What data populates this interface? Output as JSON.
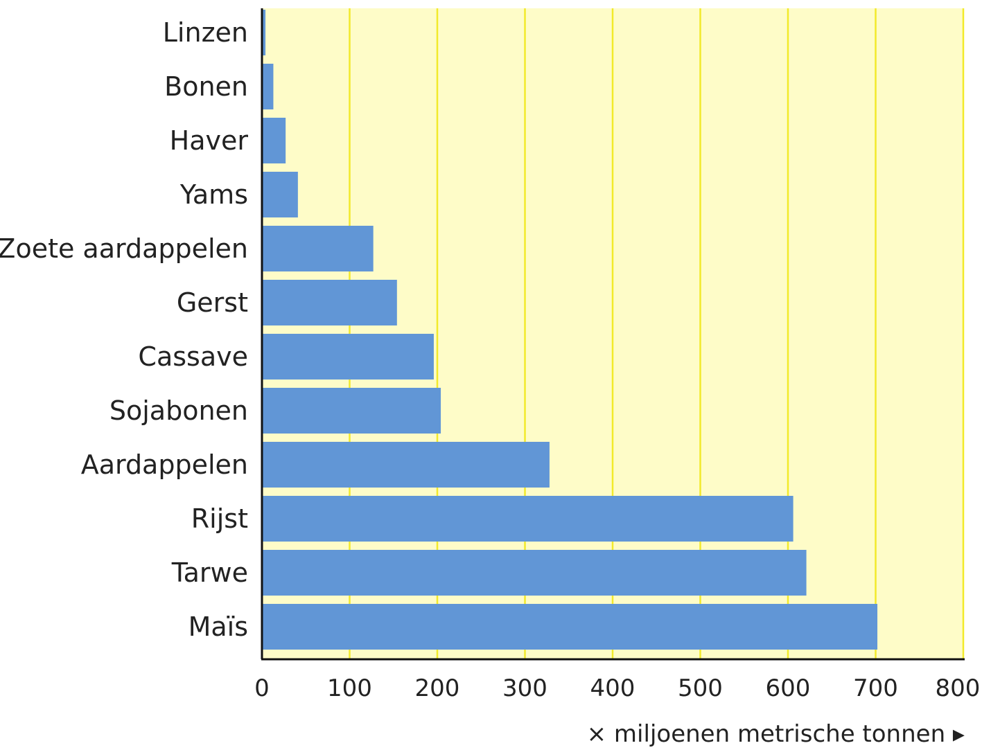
{
  "chart_data": {
    "type": "bar",
    "orientation": "horizontal",
    "categories": [
      "Linzen",
      "Bonen",
      "Haver",
      "Yams",
      "Zoete aardappelen",
      "Gerst",
      "Cassave",
      "Sojabonen",
      "Aardappelen",
      "Rijst",
      "Tarwe",
      "Maïs"
    ],
    "values": [
      4,
      13,
      27,
      41,
      127,
      154,
      196,
      204,
      328,
      606,
      621,
      702
    ],
    "xlabel": "× miljoenen metrische tonnen ▸",
    "ylabel": "",
    "title": "",
    "xlim": [
      0,
      800
    ],
    "xticks": [
      "0",
      "100",
      "200",
      "300",
      "400",
      "500",
      "600",
      "700",
      "800"
    ],
    "grid": "vertical",
    "colors": {
      "bar": "#6196d6",
      "plot_background": "#fefcc8",
      "grid": "#f2ea2a",
      "axis": "#111111",
      "text": "#222222"
    }
  }
}
